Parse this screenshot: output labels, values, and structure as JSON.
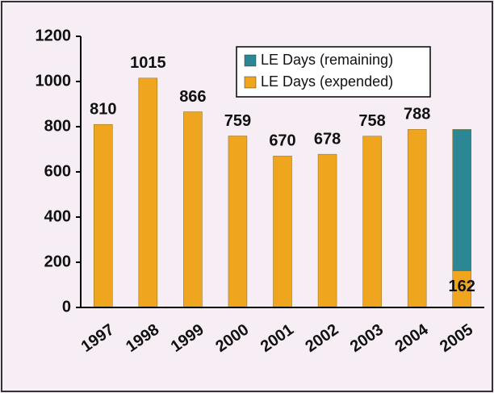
{
  "chart_data": {
    "type": "stacked_bar",
    "categories": [
      "1997",
      "1998",
      "1999",
      "2000",
      "2001",
      "2002",
      "2003",
      "2004",
      "2005"
    ],
    "series": [
      {
        "name": "LE Days (expended)",
        "color": "#f0a51e",
        "values": [
          810,
          1015,
          866,
          759,
          670,
          678,
          758,
          788,
          162
        ]
      },
      {
        "name": "LE Days (remaining)",
        "color": "#2b8794",
        "values": [
          null,
          null,
          null,
          null,
          null,
          null,
          null,
          null,
          626
        ]
      }
    ],
    "ylim": [
      0,
      1200
    ],
    "yticks": [
      0,
      200,
      400,
      600,
      800,
      1000,
      1200
    ],
    "value_labels_series": 0,
    "legend": "upper right"
  }
}
